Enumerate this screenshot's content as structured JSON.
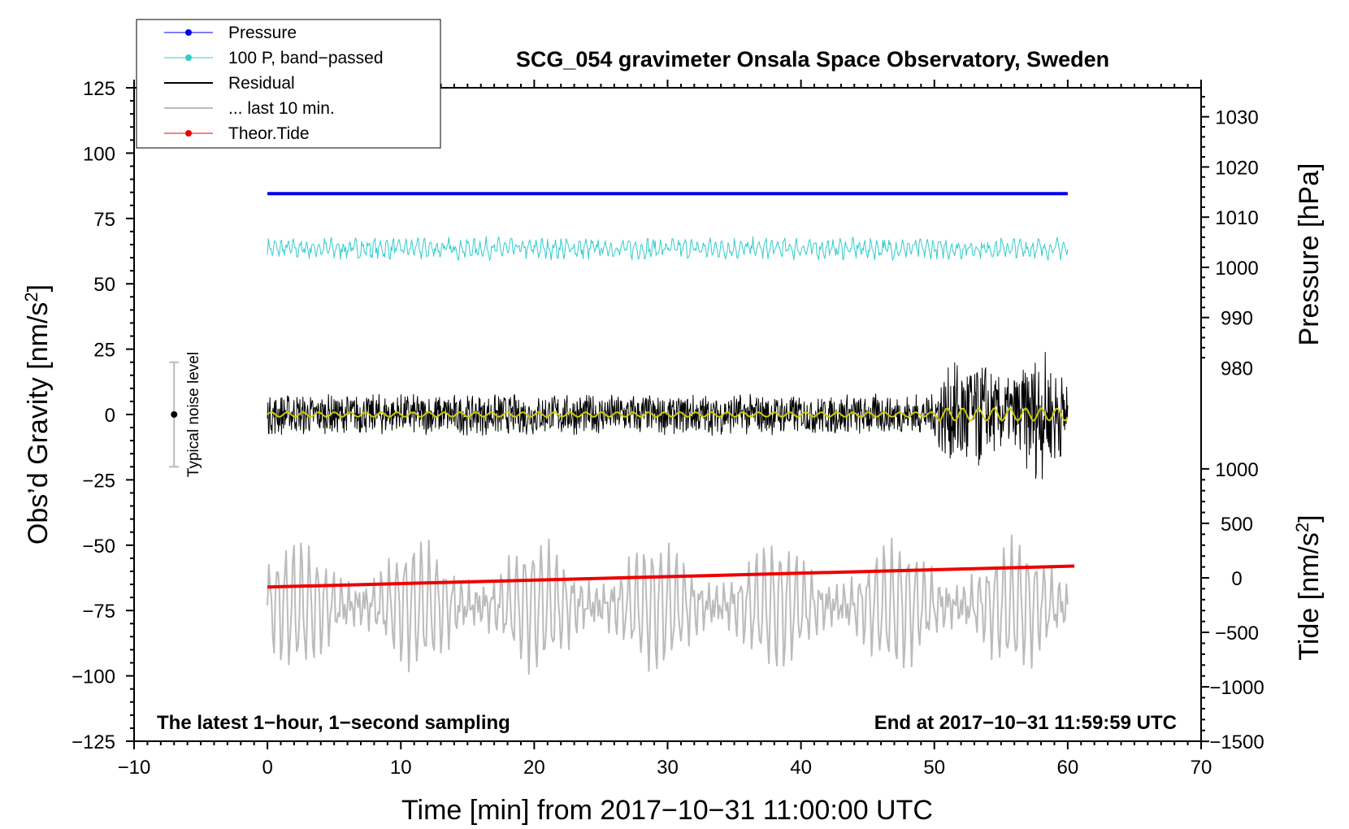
{
  "chart_data": {
    "type": "line",
    "title": "SCG_054 gravimeter Onsala Space Observatory, Sweden",
    "xlabel": "Time [min] from 2017−10−31 11:00:00 UTC",
    "ylabel_left": "Obs’d Gravity [nm/s",
    "ylabel_left_sup": "2",
    "ylabel_left_end": "]",
    "ylabel_right_pressure": "Pressure [hPa]",
    "ylabel_right_tide": "Tide [nm/s",
    "ylabel_right_tide_sup": "2",
    "ylabel_right_tide_end": "]",
    "xlim": [
      -10,
      70
    ],
    "ylim": [
      -125,
      125
    ],
    "x_ticks": [
      "−10",
      "0",
      "10",
      "20",
      "30",
      "40",
      "50",
      "60",
      "70"
    ],
    "y_ticks": [
      "125",
      "100",
      "75",
      "50",
      "25",
      "0",
      "−25",
      "−50",
      "−75",
      "−100",
      "−125"
    ],
    "pressure_axis": {
      "ticks": [
        "1030",
        "1020",
        "1010",
        "1000",
        "990",
        "980"
      ],
      "values": [
        1030,
        1020,
        1010,
        1000,
        990,
        980
      ],
      "plot_at_1010": 75.5,
      "scale_per_hpa": 1.92
    },
    "tide_axis": {
      "ticks": [
        "1000",
        "500",
        "0",
        "−500",
        "−1000",
        "−1500"
      ],
      "values": [
        1000,
        500,
        0,
        -500,
        -1000,
        -1500
      ],
      "plot_at_0": -62.5,
      "scale_per_unit": 0.0417
    },
    "legend": [
      {
        "label": "Pressure",
        "color": "#0000ee",
        "marker": true
      },
      {
        "label": "100 P, band−passed",
        "color": "#33cccc",
        "marker": true
      },
      {
        "label": "Residual",
        "color": "#000000",
        "marker": false
      },
      {
        "label": "... last 10 min.",
        "color": "#bbbbbb",
        "marker": false
      },
      {
        "label": "Theor.Tide",
        "color": "#ee0000",
        "marker": true
      }
    ],
    "noise_bar": {
      "label": "Typical noise level",
      "x": -7,
      "center": 0,
      "halfwidth": 20
    },
    "note_left": "The latest 1−hour, 1−second sampling",
    "note_right": "End at 2017−10−31 11:59:59 UTC",
    "series": [
      {
        "name": "Pressure",
        "color": "#0000ee",
        "x_range": [
          0,
          60
        ],
        "values_hpa": [
          1013.5,
          1013.5
        ],
        "plot_level": 84.5
      },
      {
        "name": "100 P, band−passed",
        "color": "#33cccc",
        "x_range": [
          0,
          60
        ],
        "center": 63.5,
        "amplitude": 4,
        "max": 73,
        "min": 53
      },
      {
        "name": "Residual",
        "color": "#000000",
        "x_range": [
          0,
          60
        ],
        "center": 0,
        "amplitude_early": 8,
        "amplitude_late": 25,
        "burst_start": 50,
        "max": 37,
        "min": -36
      },
      {
        "name": "Residual smoothed",
        "color": "#cccc00",
        "x_range": [
          0,
          60
        ],
        "center": 0,
        "amplitude": 1.5
      },
      {
        "name": "... last 10 min.",
        "color": "#bbbbbb",
        "x_range": [
          0,
          60
        ],
        "center": -73,
        "amplitude": 18,
        "max": -39,
        "min": -113
      },
      {
        "name": "Theor.Tide",
        "color": "#ee0000",
        "x": [
          0,
          60.5
        ],
        "values": [
          -66,
          -58
        ]
      }
    ],
    "grid": false
  }
}
